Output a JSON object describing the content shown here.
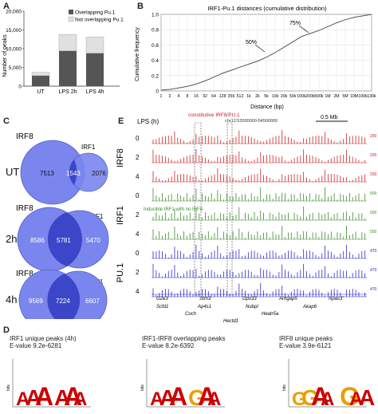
{
  "panels": {
    "a": {
      "label": "A",
      "chart_data": {
        "type": "bar",
        "categories": [
          "UT",
          "LPS 2h",
          "LPS 4h"
        ],
        "series": [
          {
            "name": "Overlapping Pu.1",
            "values": [
              2800,
              9400,
              8800
            ]
          },
          {
            "name": "Not overlapping Pu.1",
            "values": [
              900,
              4400,
              4300
            ]
          }
        ],
        "ylabel": "Number of peaks",
        "yticks": [
          "0",
          "5,000",
          "10,000",
          "15,000",
          "20,000"
        ],
        "ylim": [
          0,
          20000
        ],
        "legend_position": "top-right",
        "colors": [
          "#555555",
          "#e0e0e0"
        ]
      }
    },
    "b": {
      "label": "B",
      "chart_data": {
        "type": "line",
        "title": "IRF1-Pu.1 distances (cumulative distribution)",
        "xlabel": "Distance (bp)",
        "ylabel": "Cumulative frequency",
        "xscale": "log",
        "xticks": [
          "1",
          "2",
          "4",
          "8",
          "16",
          "32",
          "64",
          "128",
          "256",
          "512",
          "1k",
          "2k",
          "5k",
          "10k",
          "20k",
          "50k",
          "100k",
          "200k",
          "500k",
          "1M",
          "2M",
          "5M",
          "10M",
          "100k",
          "130k"
        ],
        "yticks": [
          "0",
          "0.2",
          "0.4",
          "0.6",
          "0.8",
          "1.0"
        ],
        "ylim": [
          0,
          1
        ],
        "grid": true,
        "x": [
          1,
          2,
          4,
          8,
          16,
          32,
          64,
          128,
          256,
          512,
          1024,
          2048,
          4096,
          8192,
          16384,
          32768,
          65536,
          131072,
          262144,
          524288,
          1048576,
          2097152,
          4194304,
          8388608,
          16777216
        ],
        "y": [
          0.01,
          0.02,
          0.04,
          0.06,
          0.09,
          0.13,
          0.18,
          0.23,
          0.27,
          0.31,
          0.35,
          0.39,
          0.44,
          0.5,
          0.57,
          0.64,
          0.71,
          0.75,
          0.79,
          0.84,
          0.89,
          0.93,
          0.96,
          0.98,
          1.0
        ],
        "annotations": [
          {
            "text": "50%",
            "x": 4096,
            "y": 0.5
          },
          {
            "text": "75%",
            "x": 131072,
            "y": 0.75
          }
        ]
      }
    },
    "c": {
      "label": "C",
      "venns": [
        {
          "time": "UT",
          "left_label": "IRF8",
          "right_label": "IRF1",
          "left_only": "7513",
          "overlap": "1543",
          "right_only": "2076"
        },
        {
          "time": "2h",
          "left_label": "IRF8",
          "right_label": "IRF1",
          "left_only": "8586",
          "overlap": "5781",
          "right_only": "5470"
        },
        {
          "time": "4h",
          "left_label": "IRF8",
          "right_label": "IRF1",
          "left_only": "9569",
          "overlap": "7224",
          "right_only": "6607"
        }
      ]
    },
    "e": {
      "label": "E",
      "lps_label": "LPS (h)",
      "scale_label": "0.5 Mb",
      "constitutive_label": "constitutive IRF8/PU.1",
      "coord_label": "chr12:52000000-54500000",
      "inducible_label": "Inducible IRF1 with no IRF8",
      "groups": [
        {
          "name": "IRF8",
          "color": "#cc2222",
          "tracks": [
            "0",
            "2",
            "4"
          ]
        },
        {
          "name": "IRF1",
          "color": "#3a8a2a",
          "tracks": [
            "0",
            "2",
            "4"
          ]
        },
        {
          "name": "PU.1",
          "color": "#2a2ac8",
          "tracks": [
            "0",
            "2",
            "4"
          ]
        }
      ],
      "scale_values": [
        "200",
        "200",
        "200",
        "500",
        "500",
        "500",
        "470",
        "470",
        "470"
      ],
      "genes_row1": [
        "G2e3",
        "Strn3",
        "Gpx33",
        "Arhgap5",
        "Npas3"
      ],
      "genes_row2": [
        "Scfd1",
        "Ap4s1",
        "Nubpl",
        "Akap6"
      ],
      "genes_row3": [
        "Coch",
        "Heatr5a"
      ],
      "genes_row4": [
        "Hectd1"
      ]
    },
    "d": {
      "label": "D",
      "motifs": [
        {
          "title": "IRF1 unique peaks (4h)",
          "evalue": "E-value 9.2e-6281",
          "logo": "AAA_AAA"
        },
        {
          "title": "IRF1-IRF8 overlapping peaks",
          "evalue": "E-value 8.2e-6392",
          "logo": "AAA_GAA"
        },
        {
          "title": "IRF8 unique peaks",
          "evalue": "E-value 3.9e-6121",
          "logo": "GGAA_GAA"
        }
      ],
      "ylabel": "bits"
    }
  }
}
